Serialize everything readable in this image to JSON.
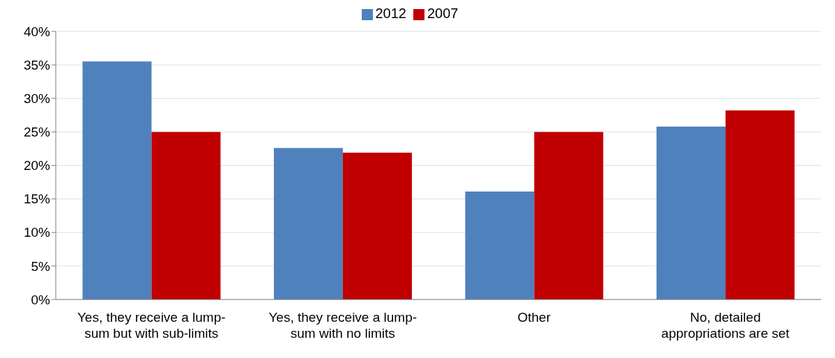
{
  "chart_data": {
    "type": "bar",
    "categories": [
      "Yes, they receive a lump-sum but with sub-limits",
      "Yes, they receive a lump-sum with no limits",
      "Other",
      "No, detailed appropriations are set"
    ],
    "series": [
      {
        "name": "2012",
        "color": "#4f81bd",
        "values": [
          35.5,
          22.6,
          16.1,
          25.8
        ]
      },
      {
        "name": "2007",
        "color": "#c00000",
        "values": [
          25.0,
          21.9,
          25.0,
          28.2
        ]
      }
    ],
    "ylim": [
      0,
      40
    ],
    "yticks": [
      {
        "value": 0,
        "label": "0%"
      },
      {
        "value": 5,
        "label": "5%"
      },
      {
        "value": 10,
        "label": "10%"
      },
      {
        "value": 15,
        "label": "15%"
      },
      {
        "value": 20,
        "label": "20%"
      },
      {
        "value": 25,
        "label": "25%"
      },
      {
        "value": 30,
        "label": "30%"
      },
      {
        "value": 35,
        "label": "35%"
      },
      {
        "value": 40,
        "label": "40%"
      }
    ],
    "grid": "y",
    "legend": "top"
  }
}
